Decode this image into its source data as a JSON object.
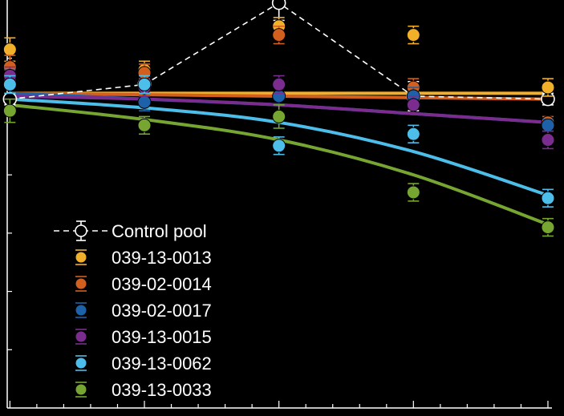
{
  "chart_data": {
    "type": "scatter",
    "title": "",
    "xlabel": "",
    "ylabel": "",
    "x": [
      0,
      1,
      2,
      3,
      4
    ],
    "xlim": [
      -0.02,
      4.03
    ],
    "ylim": [
      0,
      1.4
    ],
    "grid": false,
    "legend_position": "bottom-left",
    "series": [
      {
        "name": "Control pool",
        "color": "#000000",
        "style": "dashed-connect",
        "y": [
          1.06,
          1.11,
          1.39,
          1.07,
          1.06
        ],
        "err": [
          0.02,
          0.01,
          0.06,
          0.05,
          0.02
        ],
        "fit": null
      },
      {
        "name": "039-13-0013",
        "color": "#F2B02A",
        "y": [
          1.23,
          1.16,
          1.31,
          1.28,
          1.1
        ],
        "err": [
          0.04,
          0.03,
          0.03,
          0.03,
          0.03
        ],
        "fit": [
          1.08,
          1.08,
          1.08,
          1.08,
          1.08
        ]
      },
      {
        "name": "039-02-0014",
        "color": "#D35F1F",
        "y": [
          1.17,
          1.15,
          1.28,
          1.1,
          0.98
        ],
        "err": [
          0.04,
          0.03,
          0.03,
          0.03,
          0.02
        ],
        "fit": [
          1.08,
          1.075,
          1.07,
          1.065,
          1.06
        ]
      },
      {
        "name": "039-02-0017",
        "color": "#1D62A8",
        "y": [
          1.13,
          1.05,
          1.07,
          1.07,
          0.97
        ],
        "err": [
          0.03,
          0.03,
          0.03,
          0.03,
          0.02
        ],
        "fit": [
          1.08,
          1.06,
          1.04,
          1.01,
          0.98
        ]
      },
      {
        "name": "039-13-0015",
        "color": "#7A2C8F",
        "y": [
          1.14,
          1.1,
          1.11,
          1.04,
          0.92
        ],
        "err": [
          0.03,
          0.03,
          0.03,
          0.03,
          0.03
        ],
        "fit": [
          1.07,
          1.06,
          1.04,
          1.01,
          0.98
        ]
      },
      {
        "name": "039-13-0062",
        "color": "#4DBDEA",
        "y": [
          1.11,
          1.11,
          0.9,
          0.94,
          0.72
        ],
        "err": [
          0.03,
          0.03,
          0.03,
          0.03,
          0.03
        ],
        "fit": [
          1.06,
          1.03,
          0.98,
          0.88,
          0.73
        ]
      },
      {
        "name": "039-13-0033",
        "color": "#76A532",
        "y": [
          1.02,
          0.97,
          1.0,
          0.74,
          0.62
        ],
        "err": [
          0.04,
          0.03,
          0.04,
          0.03,
          0.03
        ],
        "fit": [
          1.04,
          0.99,
          0.92,
          0.8,
          0.63
        ]
      }
    ]
  }
}
